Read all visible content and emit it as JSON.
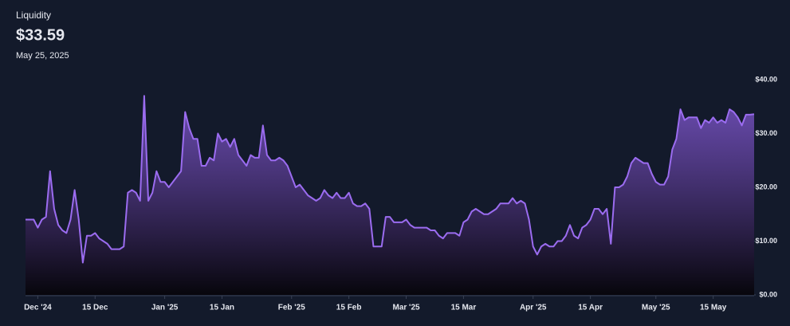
{
  "chart_data": {
    "type": "area",
    "title": "Liquidity",
    "current_value_label": "$33.59",
    "current_date": "May 25, 2025",
    "color": "#9b6cf0",
    "x": [
      "2024-11-28",
      "2024-11-29",
      "2024-11-30",
      "2024-12-01",
      "2024-12-02",
      "2024-12-03",
      "2024-12-04",
      "2024-12-05",
      "2024-12-06",
      "2024-12-07",
      "2024-12-08",
      "2024-12-09",
      "2024-12-10",
      "2024-12-11",
      "2024-12-12",
      "2024-12-13",
      "2024-12-14",
      "2024-12-15",
      "2024-12-16",
      "2024-12-17",
      "2024-12-18",
      "2024-12-19",
      "2024-12-20",
      "2024-12-21",
      "2024-12-22",
      "2024-12-23",
      "2024-12-24",
      "2024-12-25",
      "2024-12-26",
      "2024-12-27",
      "2024-12-28",
      "2024-12-29",
      "2024-12-30",
      "2024-12-31",
      "2025-01-01",
      "2025-01-02",
      "2025-01-03",
      "2025-01-04",
      "2025-01-05",
      "2025-01-06",
      "2025-01-07",
      "2025-01-08",
      "2025-01-09",
      "2025-01-10",
      "2025-01-11",
      "2025-01-12",
      "2025-01-13",
      "2025-01-14",
      "2025-01-15",
      "2025-01-16",
      "2025-01-17",
      "2025-01-18",
      "2025-01-19",
      "2025-01-20",
      "2025-01-21",
      "2025-01-22",
      "2025-01-23",
      "2025-01-24",
      "2025-01-25",
      "2025-01-26",
      "2025-01-27",
      "2025-01-28",
      "2025-01-29",
      "2025-01-30",
      "2025-01-31",
      "2025-02-01",
      "2025-02-02",
      "2025-02-03",
      "2025-02-04",
      "2025-02-05",
      "2025-02-06",
      "2025-02-07",
      "2025-02-08",
      "2025-02-09",
      "2025-02-10",
      "2025-02-11",
      "2025-02-12",
      "2025-02-13",
      "2025-02-14",
      "2025-02-15",
      "2025-02-16",
      "2025-02-17",
      "2025-02-18",
      "2025-02-19",
      "2025-02-20",
      "2025-02-21",
      "2025-02-22",
      "2025-02-23",
      "2025-02-24",
      "2025-02-25",
      "2025-02-26",
      "2025-02-27",
      "2025-02-28",
      "2025-03-01",
      "2025-03-02",
      "2025-03-03",
      "2025-03-04",
      "2025-03-05",
      "2025-03-06",
      "2025-03-07",
      "2025-03-08",
      "2025-03-09",
      "2025-03-10",
      "2025-03-11",
      "2025-03-12",
      "2025-03-13",
      "2025-03-14",
      "2025-03-15",
      "2025-03-16",
      "2025-03-17",
      "2025-03-18",
      "2025-03-19",
      "2025-03-20",
      "2025-03-21",
      "2025-03-22",
      "2025-03-23",
      "2025-03-24",
      "2025-03-25",
      "2025-03-26",
      "2025-03-27",
      "2025-03-28",
      "2025-03-29",
      "2025-03-30",
      "2025-03-31",
      "2025-04-01",
      "2025-04-02",
      "2025-04-03",
      "2025-04-04",
      "2025-04-05",
      "2025-04-06",
      "2025-04-07",
      "2025-04-08",
      "2025-04-09",
      "2025-04-10",
      "2025-04-11",
      "2025-04-12",
      "2025-04-13",
      "2025-04-14",
      "2025-04-15",
      "2025-04-16",
      "2025-04-17",
      "2025-04-18",
      "2025-04-19",
      "2025-04-20",
      "2025-04-21",
      "2025-04-22",
      "2025-04-23",
      "2025-04-24",
      "2025-04-25",
      "2025-04-26",
      "2025-04-27",
      "2025-04-28",
      "2025-04-29",
      "2025-04-30",
      "2025-05-01",
      "2025-05-02",
      "2025-05-03",
      "2025-05-04",
      "2025-05-05",
      "2025-05-06",
      "2025-05-07",
      "2025-05-08",
      "2025-05-09",
      "2025-05-10",
      "2025-05-11",
      "2025-05-12",
      "2025-05-13",
      "2025-05-14",
      "2025-05-15",
      "2025-05-16",
      "2025-05-17",
      "2025-05-18",
      "2025-05-19",
      "2025-05-20",
      "2025-05-21",
      "2025-05-22",
      "2025-05-23",
      "2025-05-24",
      "2025-05-25"
    ],
    "values": [
      14,
      14,
      14,
      12.5,
      14,
      14.5,
      23,
      16,
      13,
      12,
      11.5,
      14,
      19.5,
      14,
      6,
      11,
      11,
      11.5,
      10.5,
      10,
      9.5,
      8.5,
      8.5,
      8.5,
      9,
      19,
      19.5,
      19,
      17.5,
      37,
      17.5,
      19,
      23,
      21,
      21,
      20,
      21,
      22,
      23,
      34,
      31,
      29,
      29,
      24,
      24,
      25.5,
      25,
      30,
      28.5,
      29,
      27.5,
      29,
      26,
      25,
      24,
      26,
      25.5,
      25.5,
      31.5,
      26,
      25,
      25,
      25.5,
      25,
      24,
      22,
      20,
      20.5,
      19.5,
      18.5,
      18,
      17.5,
      18,
      19.5,
      18.5,
      18,
      19,
      18,
      18,
      19,
      17,
      16.5,
      16.5,
      17,
      16,
      9,
      9,
      9,
      14.5,
      14.5,
      13.5,
      13.5,
      13.5,
      14,
      13,
      12.5,
      12.5,
      12.5,
      12.5,
      12,
      12,
      11,
      10.5,
      11.5,
      11.5,
      11.5,
      11,
      13.5,
      14,
      15.5,
      16,
      15.5,
      15,
      15,
      15.5,
      16,
      17,
      17,
      17,
      18,
      17,
      17.5,
      17,
      14,
      9,
      7.5,
      9,
      9.5,
      9,
      9,
      10,
      10,
      11,
      13,
      11,
      10.5,
      12.5,
      13,
      14,
      16,
      16,
      15,
      16,
      9.5,
      20,
      20,
      20.5,
      22,
      24.5,
      25.5,
      25,
      24.5,
      24.5,
      22.5,
      21,
      20.5,
      20.5,
      22,
      27,
      29,
      34.5,
      32.5,
      33,
      33,
      33,
      31,
      32.5,
      32,
      33,
      32,
      32.5,
      32,
      34.5,
      34,
      33,
      31.5,
      33.5,
      33.5,
      33.59
    ],
    "xlim": [
      "2024-11-28",
      "2025-05-25"
    ],
    "xticks": [
      {
        "value": "2024-12-01",
        "label": "Dec '24"
      },
      {
        "value": "2024-12-15",
        "label": "15 Dec"
      },
      {
        "value": "2025-01-01",
        "label": "Jan '25"
      },
      {
        "value": "2025-01-15",
        "label": "15 Jan"
      },
      {
        "value": "2025-02-01",
        "label": "Feb '25"
      },
      {
        "value": "2025-02-15",
        "label": "15 Feb"
      },
      {
        "value": "2025-03-01",
        "label": "Mar '25"
      },
      {
        "value": "2025-03-15",
        "label": "15 Mar"
      },
      {
        "value": "2025-04-01",
        "label": "Apr '25"
      },
      {
        "value": "2025-04-15",
        "label": "15 Apr"
      },
      {
        "value": "2025-05-01",
        "label": "May '25"
      },
      {
        "value": "2025-05-15",
        "label": "15 May"
      }
    ],
    "ylim": [
      0,
      40
    ],
    "yticks": [
      {
        "value": 0,
        "label": "$0.00"
      },
      {
        "value": 10,
        "label": "$10.00"
      },
      {
        "value": 20,
        "label": "$20.00"
      },
      {
        "value": 30,
        "label": "$30.00"
      },
      {
        "value": 40,
        "label": "$40.00"
      }
    ],
    "grid": false
  }
}
